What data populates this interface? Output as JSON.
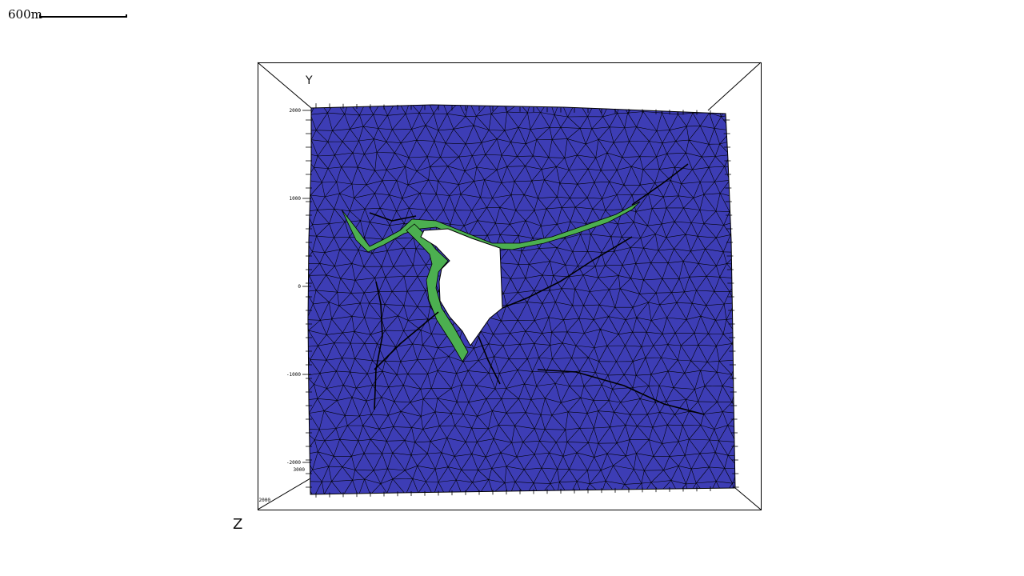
{
  "scale_bar": {
    "label": "600m"
  },
  "axes": {
    "y_label": "Y",
    "z_label": "Z",
    "y_ticks": [
      "2000",
      "1000",
      "0",
      "-1000",
      "-2000"
    ],
    "z_ticks": [
      "3000",
      "2000"
    ]
  },
  "colors": {
    "mesh_fill": "#3d3db5",
    "fault_fill": "#4caf50",
    "mesh_lines": "#000000",
    "background": "#ffffff"
  }
}
